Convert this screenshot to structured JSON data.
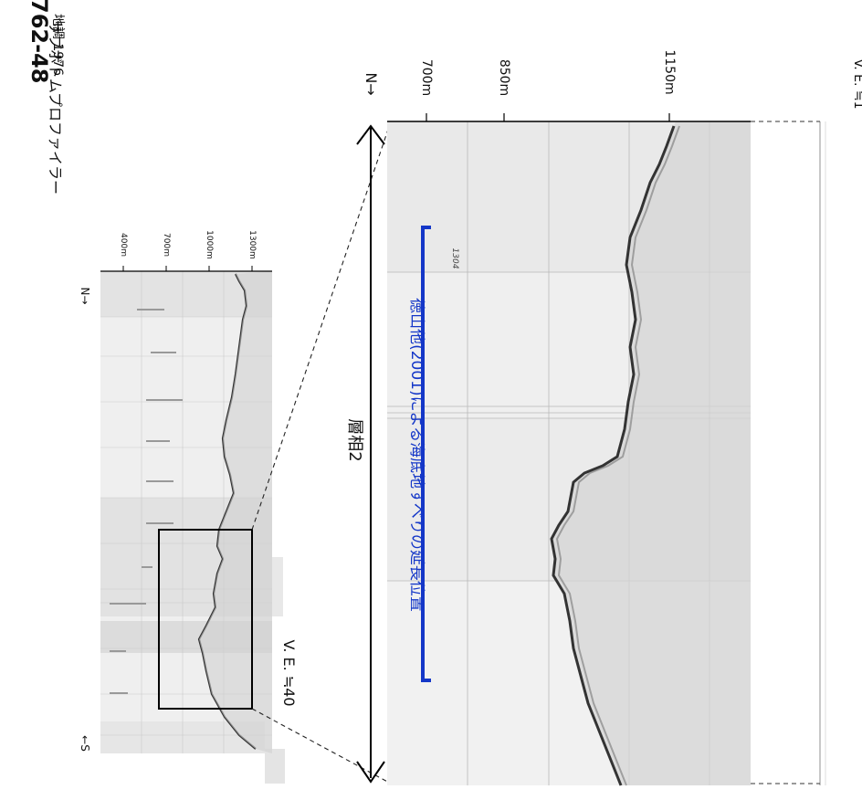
{
  "header": {
    "line_id": "762-48",
    "survey": "地調 1976",
    "instrument": "サブボトムプロファイラー"
  },
  "overview_profile": {
    "depth_ticks": [
      "400m",
      "700m",
      "1000m",
      "1300m"
    ],
    "north_label": "N→",
    "south_label": "←S",
    "vertical_exaggeration": "V. E. ≒40"
  },
  "detail_profile": {
    "depth_ticks": [
      "700m",
      "850m",
      "1150m"
    ],
    "north_label": "N→",
    "facies_label": "層相2",
    "landslide_note": "徳山他(2001)による海底地すべりの延長位置",
    "vertical_exaggeration": "V. E. ≒1",
    "handwritten_mark": "1304"
  },
  "colors": {
    "annotation_blue": "#1437c8",
    "record_bg": "#ececec",
    "record_bg_light": "#f3f3f3",
    "seafloor": "#333333"
  }
}
